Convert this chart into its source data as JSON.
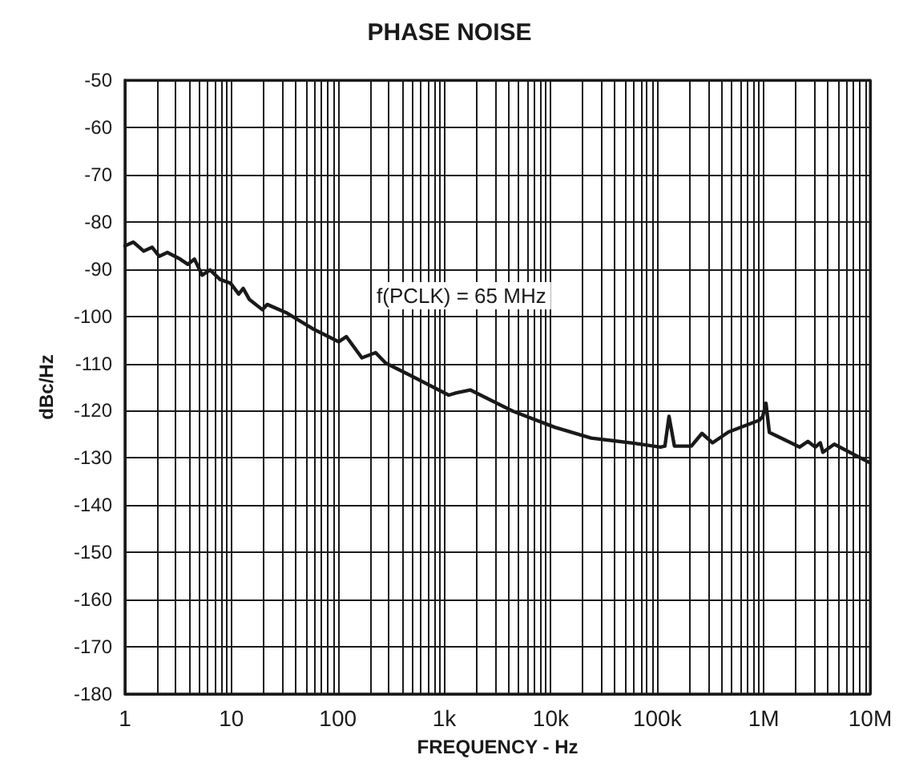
{
  "chart_data": {
    "type": "line",
    "title": "PHASE NOISE",
    "xlabel": "FREQUENCY - Hz",
    "ylabel": "dBc/Hz",
    "log": "x",
    "grid": true,
    "marker": "none",
    "line_style": "solid",
    "annotations": [
      "f(PCLK) = 65 MHz"
    ],
    "xlim": [
      1,
      10000000
    ],
    "xticks": [
      {
        "value": 1,
        "label": "1"
      },
      {
        "value": 10,
        "label": "10"
      },
      {
        "value": 100,
        "label": "100"
      },
      {
        "value": 1000,
        "label": "1k"
      },
      {
        "value": 10000,
        "label": "10k"
      },
      {
        "value": 100000,
        "label": "100k"
      },
      {
        "value": 1000000,
        "label": "1M"
      },
      {
        "value": 10000000,
        "label": "10M"
      }
    ],
    "ylim": [
      -180,
      -50
    ],
    "yticks": [
      -180,
      -170,
      -160,
      -150,
      -140,
      -130,
      -120,
      -110,
      -100,
      -90,
      -80,
      -70,
      -60,
      -50
    ],
    "series": [
      {
        "color": "#1a1a1a",
        "x": [
          1,
          1.2,
          1.5,
          1.8,
          2.1,
          2.5,
          3.3,
          3.9,
          4.5,
          5.3,
          6.3,
          7.8,
          9.8,
          11.7,
          12.9,
          14.7,
          19.5,
          21.7,
          32.5,
          57.6,
          102,
          120,
          168,
          226,
          281,
          449,
          1100,
          1300,
          1750,
          4400,
          10900,
          24000,
          61000,
          107000,
          118000,
          129000,
          145000,
          209000,
          263000,
          331000,
          467000,
          912000,
          980000,
          1050000,
          1130000,
          1800000,
          2170000,
          2600000,
          3050000,
          3400000,
          3600000,
          4600000,
          9500000,
          10000000
        ],
        "values": [
          -85.1,
          -84.3,
          -86.2,
          -85.4,
          -87.3,
          -86.5,
          -87.9,
          -89.0,
          -87.9,
          -91.3,
          -90.2,
          -92.2,
          -93.0,
          -95.3,
          -94.1,
          -96.4,
          -98.6,
          -97.5,
          -99.2,
          -102.6,
          -105.4,
          -104.3,
          -108.8,
          -107.7,
          -109.9,
          -112.2,
          -116.7,
          -116.2,
          -115.6,
          -120.1,
          -123.5,
          -125.8,
          -126.9,
          -127.7,
          -127.5,
          -121.2,
          -127.5,
          -127.5,
          -124.8,
          -126.8,
          -124.5,
          -122.0,
          -121.2,
          -118.4,
          -124.6,
          -126.8,
          -127.7,
          -126.5,
          -127.7,
          -126.8,
          -128.8,
          -127.1,
          -130.8,
          -131
        ]
      }
    ]
  }
}
